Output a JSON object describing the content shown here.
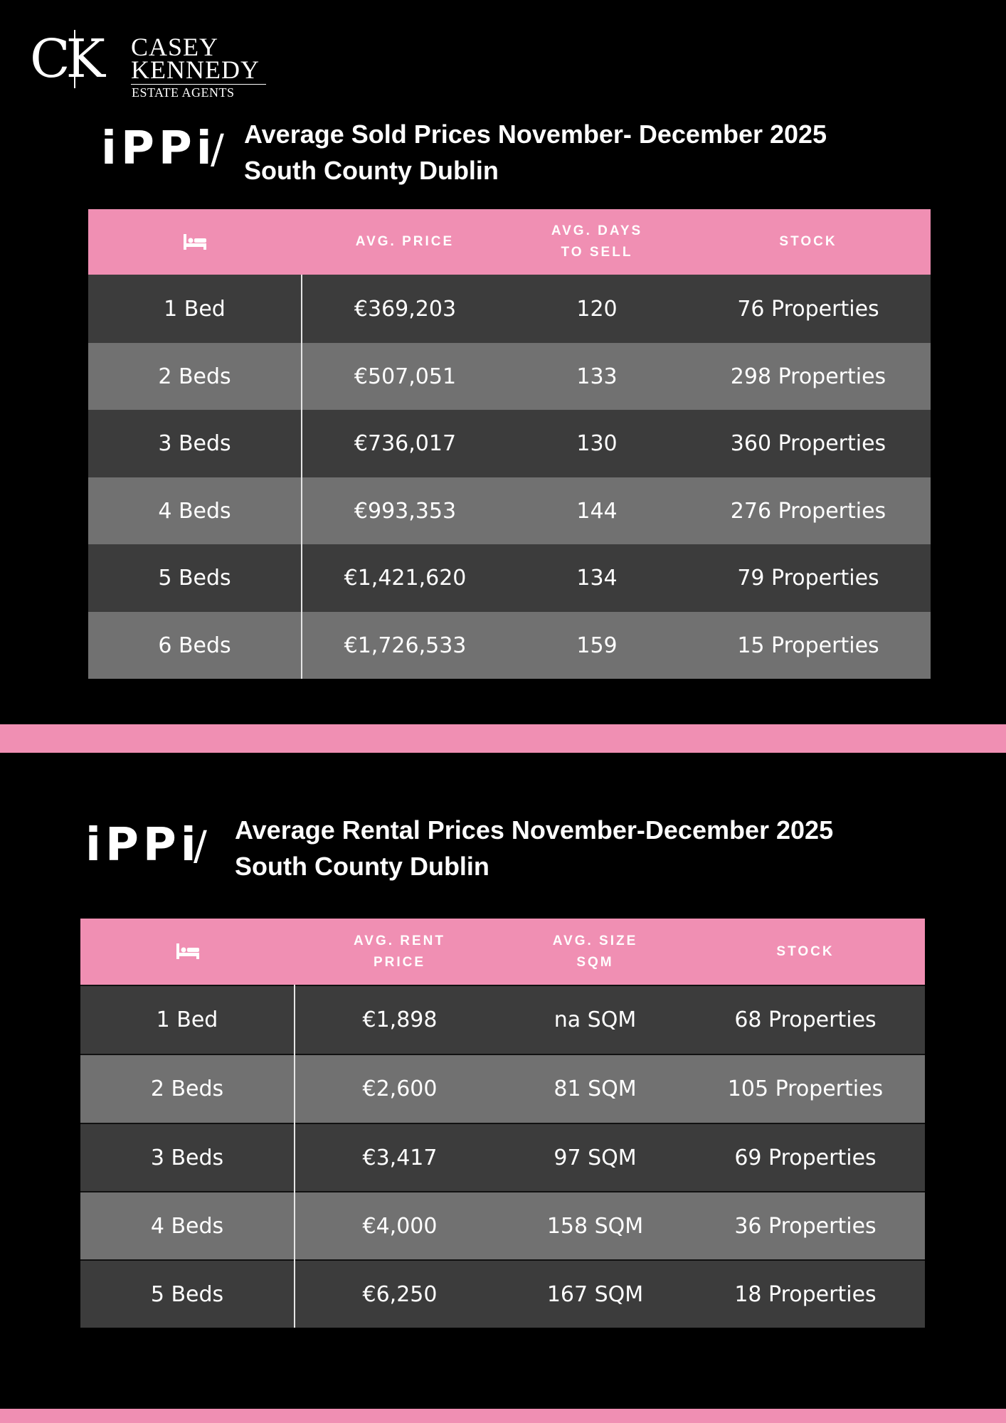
{
  "brand": {
    "mark": "CK",
    "name_line1": "CASEY",
    "name_line2": "KENNEDY",
    "tagline": "ESTATE AGENTS"
  },
  "sold": {
    "ippi": "iPPi",
    "slash": "/",
    "title_line1": "Average Sold Prices November- December 2025",
    "title_line2": "South County Dublin",
    "headers": {
      "bed_icon": "bed-icon",
      "price": "AVG. PRICE",
      "days_line1": "AVG. DAYS",
      "days_line2": "TO SELL",
      "stock": "STOCK"
    },
    "rows": [
      {
        "bed": "1 Bed",
        "price": "€369,203",
        "days": "120",
        "stock": "76 Properties"
      },
      {
        "bed": "2 Beds",
        "price": "€507,051",
        "days": "133",
        "stock": "298 Properties"
      },
      {
        "bed": "3 Beds",
        "price": "€736,017",
        "days": "130",
        "stock": "360 Properties"
      },
      {
        "bed": "4 Beds",
        "price": "€993,353",
        "days": "144",
        "stock": "276 Properties"
      },
      {
        "bed": "5 Beds",
        "price": "€1,421,620",
        "days": "134",
        "stock": "79 Properties"
      },
      {
        "bed": "6 Beds",
        "price": "€1,726,533",
        "days": "159",
        "stock": "15 Properties"
      }
    ]
  },
  "rental": {
    "ippi": "iPPi",
    "slash": "/",
    "title_line1": "Average Rental Prices November-December 2025",
    "title_line2": "South County Dublin",
    "headers": {
      "bed_icon": "bed-icon",
      "price_line1": "AVG.  RENT",
      "price_line2": "PRICE",
      "size_line1": "AVG. SIZE",
      "size_line2": "SQM",
      "stock": "STOCK"
    },
    "rows": [
      {
        "bed": "1 Bed",
        "price": "€1,898",
        "size": "na SQM",
        "stock": "68 Properties"
      },
      {
        "bed": "2 Beds",
        "price": "€2,600",
        "size": "81 SQM",
        "stock": "105 Properties"
      },
      {
        "bed": "3 Beds",
        "price": "€3,417",
        "size": "97 SQM",
        "stock": "69 Properties"
      },
      {
        "bed": "4 Beds",
        "price": "€4,000",
        "size": "158 SQM",
        "stock": "36 Properties"
      },
      {
        "bed": "5 Beds",
        "price": "€6,250",
        "size": "167 SQM",
        "stock": "18 Properties"
      }
    ]
  },
  "colors": {
    "background": "#000000",
    "accent_pink": "#f08fb3",
    "row_dark": "#3c3c3c",
    "row_light": "#717171"
  }
}
